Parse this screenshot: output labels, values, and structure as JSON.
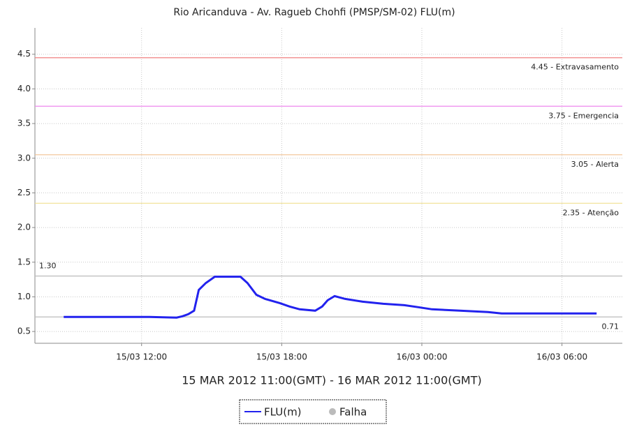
{
  "chart_data": {
    "type": "line",
    "title": "Rio Aricanduva - Av. Ragueb Chohfi (PMSP/SM-02) FLU(m)",
    "x_label": "15 MAR 2012 11:00(GMT) - 16 MAR 2012 11:00(GMT)",
    "x": [
      "2012-03-15T08:40",
      "2012-03-15T12:20",
      "2012-03-15T13:30",
      "2012-03-15T13:45",
      "2012-03-15T14:00",
      "2012-03-15T14:15",
      "2012-03-15T14:27",
      "2012-03-15T14:45",
      "2012-03-15T15:08",
      "2012-03-15T16:14",
      "2012-03-15T16:32",
      "2012-03-15T16:55",
      "2012-03-15T17:17",
      "2012-03-15T17:55",
      "2012-03-15T18:20",
      "2012-03-15T18:46",
      "2012-03-15T19:26",
      "2012-03-15T19:44",
      "2012-03-15T19:58",
      "2012-03-15T20:16",
      "2012-03-15T20:43",
      "2012-03-15T21:28",
      "2012-03-15T22:21",
      "2012-03-15T23:15",
      "2012-03-15T23:51",
      "2012-03-16T00:26",
      "2012-03-16T01:38",
      "2012-03-16T02:50",
      "2012-03-16T03:25",
      "2012-03-16T05:49",
      "2012-03-16T07:29"
    ],
    "series": [
      {
        "name": "FLU(m)",
        "color": "#2222ee",
        "values": [
          0.71,
          0.71,
          0.7,
          0.72,
          0.75,
          0.8,
          1.1,
          1.2,
          1.29,
          1.29,
          1.2,
          1.03,
          0.97,
          0.91,
          0.86,
          0.82,
          0.8,
          0.86,
          0.95,
          1.01,
          0.97,
          0.93,
          0.9,
          0.88,
          0.85,
          0.82,
          0.8,
          0.78,
          0.76,
          0.76,
          0.76
        ]
      }
    ],
    "fault_legend": {
      "name": "Falha",
      "color": "#bbbbbb"
    },
    "xlim": [
      "2012-03-15T07:26",
      "2012-03-16T08:35"
    ],
    "xticks": [
      {
        "value": "2012-03-15T12:00",
        "label": "15/03 12:00"
      },
      {
        "value": "2012-03-15T18:00",
        "label": "15/03 18:00"
      },
      {
        "value": "2012-03-16T00:00",
        "label": "16/03 00:00"
      },
      {
        "value": "2012-03-16T06:00",
        "label": "16/03 06:00"
      }
    ],
    "ylim": [
      0.33,
      4.88
    ],
    "yticks": [
      0.5,
      {
        "value": 1,
        "label": "1.0"
      },
      1.5,
      {
        "value": 2,
        "label": "2.0"
      },
      2.5,
      {
        "value": 3,
        "label": "3.0"
      },
      3.5,
      {
        "value": 4,
        "label": "4.0"
      },
      4.5
    ],
    "grid": true,
    "thresholds": [
      {
        "value": 4.45,
        "label": "4.45 - Extravasamento",
        "color": "#f08080",
        "label_position": "right"
      },
      {
        "value": 3.75,
        "label": "3.75 - Emergencia",
        "color": "#ee88ee",
        "label_position": "right"
      },
      {
        "value": 3.05,
        "label": "3.05 - Alerta",
        "color": "#f0c090",
        "label_position": "right"
      },
      {
        "value": 2.35,
        "label": "2.35 - Atenção",
        "color": "#f0e090",
        "label_position": "right"
      },
      {
        "value": 1.3,
        "label": "1.30",
        "color": "#bbbbbb",
        "label_position": "left"
      },
      {
        "value": 0.71,
        "label": "0.71",
        "color": "#bbbbbb",
        "label_position": "right"
      }
    ]
  }
}
